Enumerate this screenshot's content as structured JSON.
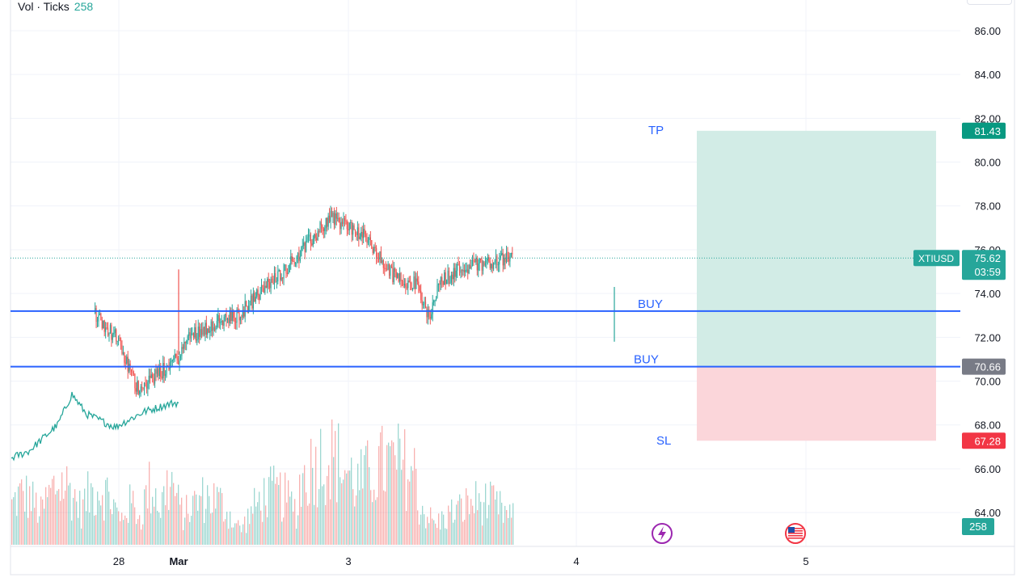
{
  "legend": {
    "label": "Vol · Ticks",
    "value": "258"
  },
  "symbol": "XTIUSD",
  "last_price": "75.62",
  "countdown": "03:59",
  "volume_label": "258",
  "colors": {
    "up": "#26a69a",
    "down": "#ef5350",
    "line": "#2962ff",
    "tp_zone": "#d2ece6",
    "sl_zone": "#fbd6da",
    "tp_badge": "#089981",
    "sl_badge": "#f23645",
    "entry_badge": "#787b86",
    "event_lightning": "#9c27b0",
    "event_flag": "#f23645"
  },
  "icons": [
    "lightning-event-icon",
    "us-flag-event-icon"
  ],
  "chart_data": {
    "type": "candlestick",
    "symbol": "XTIUSD",
    "x_tick_labels": [
      "28",
      "Mar",
      "3",
      "4",
      "5"
    ],
    "y_ticks": [
      "64.00",
      "66.00",
      "68.00",
      "70.00",
      "72.00",
      "74.00",
      "76.00",
      "78.00",
      "80.00",
      "82.00",
      "84.00",
      "86.00"
    ],
    "ylim": [
      63.6,
      87.4
    ],
    "grid": true,
    "price_path_approx": [
      {
        "t": 0.8,
        "p": 73.1
      },
      {
        "t": 0.82,
        "p": 72.6
      },
      {
        "t": 0.85,
        "p": 72.0
      },
      {
        "t": 0.9,
        "p": 69.7
      },
      {
        "t": 0.95,
        "p": 70.3
      },
      {
        "t": 1.0,
        "p": 71.1
      },
      {
        "t": 1.1,
        "p": 72.5
      },
      {
        "t": 1.2,
        "p": 73.2
      },
      {
        "t": 1.3,
        "p": 72.2
      },
      {
        "t": 1.38,
        "p": 71.6
      },
      {
        "t": 1.48,
        "p": 72.8
      },
      {
        "t": 1.6,
        "p": 71.2
      },
      {
        "t": 1.7,
        "p": 70.5
      },
      {
        "t": 1.78,
        "p": 71.1
      },
      {
        "t": 1.85,
        "p": 72.3
      },
      {
        "t": 1.95,
        "p": 71.0
      },
      {
        "t": 2.0,
        "p": 70.9
      },
      {
        "t": 2.05,
        "p": 72.0
      },
      {
        "t": 2.2,
        "p": 72.6
      },
      {
        "t": 2.35,
        "p": 73.0
      },
      {
        "t": 2.5,
        "p": 74.2
      },
      {
        "t": 2.65,
        "p": 75.3
      },
      {
        "t": 2.8,
        "p": 76.6
      },
      {
        "t": 2.9,
        "p": 77.6
      },
      {
        "t": 2.95,
        "p": 77.2
      },
      {
        "t": 3.0,
        "p": 77.1
      },
      {
        "t": 3.08,
        "p": 76.5
      },
      {
        "t": 3.15,
        "p": 75.4
      },
      {
        "t": 3.2,
        "p": 74.8
      },
      {
        "t": 3.3,
        "p": 74.4
      },
      {
        "t": 3.35,
        "p": 72.9
      },
      {
        "t": 3.4,
        "p": 74.5
      },
      {
        "t": 3.5,
        "p": 75.2
      },
      {
        "t": 3.6,
        "p": 75.4
      },
      {
        "t": 3.7,
        "p": 75.62
      }
    ],
    "previous_session_close_pane_approx": [
      {
        "t": 0.0,
        "v": 66.3
      },
      {
        "t": 0.1,
        "v": 66.8
      },
      {
        "t": 0.2,
        "v": 68.0
      },
      {
        "t": 0.25,
        "v": 69.4
      },
      {
        "t": 0.3,
        "v": 68.5
      },
      {
        "t": 0.4,
        "v": 67.9
      },
      {
        "t": 0.5,
        "v": 68.6
      },
      {
        "t": 0.6,
        "v": 69.0
      }
    ],
    "horizontal_lines": [
      {
        "label": "BUY",
        "price": 73.2
      },
      {
        "label": "BUY",
        "price": 70.66
      }
    ],
    "position_tool": {
      "take_profit": 81.43,
      "entry": 70.66,
      "stop_loss": 67.28,
      "tp_label": "TP",
      "sl_label": "SL"
    },
    "price_labels": {
      "tp": "81.43",
      "entry": "70.66",
      "sl": "67.28"
    },
    "volume": {
      "series": "Vol · Ticks",
      "last": 258
    }
  }
}
